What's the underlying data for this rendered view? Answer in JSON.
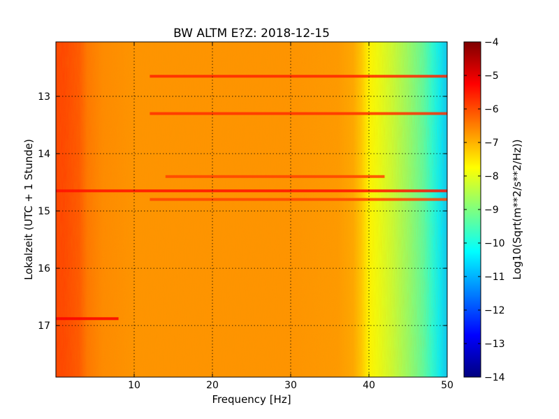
{
  "chart_data": {
    "type": "heatmap",
    "title": "BW ALTM E?Z: 2018-12-15",
    "xlabel": "Frequency [Hz]",
    "ylabel": "Lokalzeit (UTC + 1 Stunde)",
    "colorbar_label": "Log10(Sqrt(m**2/s**2/Hz))",
    "xlim": [
      0,
      50
    ],
    "ylim": [
      17.9,
      12.05
    ],
    "clim": [
      -14,
      -4
    ],
    "x_ticks": [
      10,
      20,
      30,
      40,
      50
    ],
    "x_tick_labels": [
      "10",
      "20",
      "30",
      "40",
      "50"
    ],
    "y_ticks": [
      13,
      14,
      15,
      16,
      17
    ],
    "y_tick_labels": [
      "13",
      "14",
      "15",
      "16",
      "17"
    ],
    "colorbar_ticks": [
      -4,
      -5,
      -6,
      -7,
      -8,
      -9,
      -10,
      -11,
      -12,
      -13,
      -14
    ],
    "colorbar_tick_labels": [
      "−4",
      "−5",
      "−6",
      "−7",
      "−8",
      "−9",
      "−10",
      "−11",
      "−12",
      "−13",
      "−14"
    ],
    "grid": true,
    "colormap": "jet",
    "frequency_profile": {
      "frequency_hz": [
        0,
        1,
        3,
        4,
        6,
        10,
        20,
        30,
        36,
        38,
        39,
        40,
        41,
        43,
        45,
        47,
        48,
        49,
        50
      ],
      "log10_amplitude": [
        -5.9,
        -5.9,
        -6.1,
        -6.4,
        -6.6,
        -6.7,
        -6.7,
        -6.7,
        -6.75,
        -6.9,
        -7.2,
        -7.7,
        -7.9,
        -8.3,
        -8.8,
        -9.4,
        -9.9,
        -10.4,
        -10.8
      ]
    },
    "bands": [
      {
        "time_h": 12.65,
        "freq_range_hz": [
          12,
          50
        ],
        "log10_amplitude": -5.6
      },
      {
        "time_h": 13.3,
        "freq_range_hz": [
          12,
          50
        ],
        "log10_amplitude": -5.7
      },
      {
        "time_h": 14.4,
        "freq_range_hz": [
          14,
          42
        ],
        "log10_amplitude": -5.9
      },
      {
        "time_h": 14.65,
        "freq_range_hz": [
          0,
          50
        ],
        "log10_amplitude": -5.4
      },
      {
        "time_h": 14.8,
        "freq_range_hz": [
          12,
          50
        ],
        "log10_amplitude": -5.9
      },
      {
        "time_h": 16.88,
        "freq_range_hz": [
          0,
          8
        ],
        "log10_amplitude": -5.2
      }
    ]
  },
  "colors": {
    "jet_stops": [
      "#00007f",
      "#0000ff",
      "#007fff",
      "#00ffff",
      "#7fff7f",
      "#ffff00",
      "#ff7f00",
      "#ff0000",
      "#7f0000"
    ]
  }
}
